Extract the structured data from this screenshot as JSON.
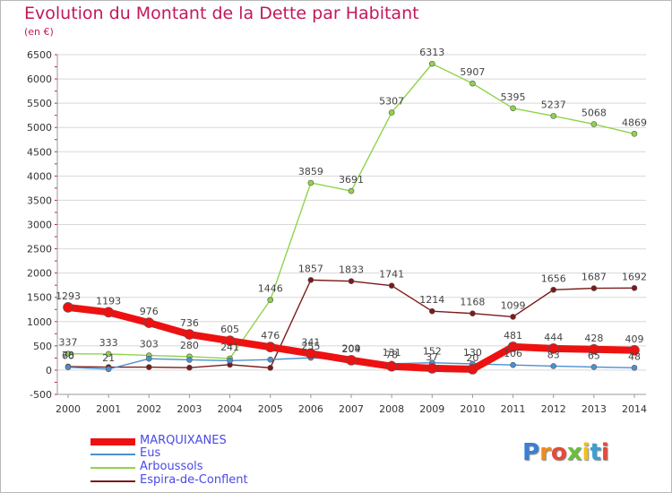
{
  "title": "Evolution du Montant de la Dette par Habitant",
  "unit_label": "(en €)",
  "logo_text": "Proxiti",
  "colors": {
    "title": "#c2185b",
    "grid": "#d8d8d8",
    "axis_text": "#333333",
    "legend_text": "#4a4ae8"
  },
  "chart_data": {
    "type": "line",
    "x": [
      "2000",
      "2001",
      "2002",
      "2003",
      "2004",
      "2005",
      "2006",
      "2007",
      "2008",
      "2009",
      "2010",
      "2011",
      "2012",
      "2013",
      "2014"
    ],
    "ylim": [
      -500,
      6500
    ],
    "y_ticks": [
      -500,
      0,
      500,
      1000,
      1500,
      2000,
      2500,
      3000,
      3500,
      4000,
      4500,
      5000,
      5500,
      6000,
      6500
    ],
    "grid": true,
    "legend_position": "bottom-left",
    "series": [
      {
        "name": "Espira-de-Conflent",
        "color": "#7b1a1a",
        "width": 1.4,
        "values": [
          73,
          62,
          62,
          51,
          112,
          47,
          1857,
          1833,
          1741,
          1214,
          1168,
          1099,
          1656,
          1687,
          1692
        ],
        "labels": [
          "73",
          "",
          "",
          "",
          "",
          "",
          "1857",
          "1833",
          "1741",
          "1214",
          "1168",
          "1099",
          "1656",
          "1687",
          "1692"
        ]
      },
      {
        "name": "Arboussols",
        "color": "#8fd44a",
        "width": 1.4,
        "values": [
          337,
          333,
          303,
          280,
          241,
          1446,
          3859,
          3691,
          5307,
          6313,
          5907,
          5395,
          5237,
          5068,
          4869
        ],
        "labels": [
          "337",
          "333",
          "303",
          "280",
          "241",
          "1446",
          "3859",
          "3691",
          "5307",
          "6313",
          "5907",
          "5395",
          "5237",
          "5068",
          "4869"
        ]
      },
      {
        "name": "Eus",
        "color": "#4a90d0",
        "width": 1.4,
        "values": [
          60,
          21,
          235,
          213,
          196,
          217,
          255,
          209,
          131,
          152,
          130,
          106,
          83,
          65,
          48
        ],
        "labels": [
          "60",
          "21",
          "",
          "",
          "",
          "",
          "255",
          "209",
          "131",
          "152",
          "130",
          "106",
          "83",
          "65",
          "48"
        ]
      },
      {
        "name": "MARQUIXANES",
        "color": "#ee1111",
        "width": 8,
        "values": [
          1293,
          1193,
          976,
          736,
          605,
          476,
          341,
          204,
          78,
          37,
          20,
          481,
          444,
          428,
          409
        ],
        "labels": [
          "1293",
          "1193",
          "976",
          "736",
          "605",
          "476",
          "341",
          "204",
          "78",
          "37",
          "20",
          "481",
          "444",
          "428",
          "409"
        ]
      }
    ]
  },
  "legend": [
    {
      "label": "MARQUIXANES",
      "color": "#ee1111",
      "thickness": 8
    },
    {
      "label": "Eus",
      "color": "#4a90d0",
      "thickness": 2
    },
    {
      "label": "Arboussols",
      "color": "#8fd44a",
      "thickness": 2
    },
    {
      "label": "Espira-de-Conflent",
      "color": "#7b1a1a",
      "thickness": 2
    }
  ]
}
